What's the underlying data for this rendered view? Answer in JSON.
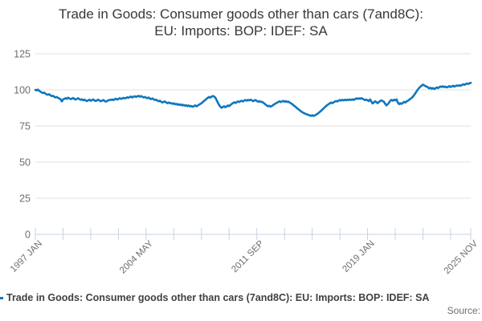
{
  "title": {
    "line1": "Trade in Goods: Consumer goods other than cars (7and8C):",
    "line2": "EU: Imports: BOP: IDEF: SA"
  },
  "legend": {
    "label": "Trade in Goods: Consumer goods other than cars (7and8C): EU: Imports: BOP: IDEF: SA",
    "marker_color": "#1077bd"
  },
  "footer": {
    "source_label": "Source:"
  },
  "chart_data": {
    "type": "line",
    "title": "Trade in Goods: Consumer goods other than cars (7and8C): EU: Imports: BOP: IDEF: SA",
    "xlabel": "",
    "ylabel": "",
    "ylim": [
      0,
      125
    ],
    "y_ticks": [
      0,
      25,
      50,
      75,
      100,
      125
    ],
    "grid": true,
    "legend_position": "bottom-left",
    "x_tick_labels": [
      "1997 JAN",
      "2004 MAY",
      "2011 SEP",
      "2019 JAN",
      "2025 NOV"
    ],
    "x_tick_interval_months": 22,
    "x_labeled_tick_indices": [
      0,
      4,
      8,
      12,
      16
    ],
    "colors": {
      "line": "#1077bd",
      "grid": "#e1e1e1",
      "axis": "#c7d3e2",
      "tick_text": "#6e6e6e"
    },
    "series": [
      {
        "name": "Trade in Goods: Consumer goods other than cars (7and8C): EU: Imports: BOP: IDEF: SA",
        "frequency": "monthly",
        "start": "1997 JAN",
        "end": "2025 NOV",
        "values": [
          100.0,
          99.6,
          100.2,
          99.4,
          98.8,
          98.3,
          97.8,
          98.1,
          97.4,
          96.9,
          96.6,
          97.0,
          96.2,
          95.7,
          95.9,
          95.2,
          94.8,
          95.1,
          94.5,
          94.0,
          93.6,
          92.0,
          93.4,
          93.8,
          94.3,
          93.8,
          94.6,
          94.1,
          93.6,
          93.9,
          94.4,
          93.7,
          93.3,
          93.8,
          94.2,
          93.6,
          93.1,
          93.5,
          92.8,
          93.3,
          92.6,
          92.2,
          92.8,
          93.2,
          92.5,
          92.9,
          93.4,
          92.7,
          92.3,
          92.8,
          93.2,
          92.6,
          92.1,
          92.5,
          93.0,
          92.4,
          91.9,
          92.3,
          92.8,
          93.1,
          93.0,
          93.4,
          92.9,
          93.5,
          93.9,
          93.3,
          93.7,
          94.2,
          93.8,
          94.0,
          94.5,
          94.1,
          94.4,
          94.9,
          94.5,
          95.0,
          95.4,
          94.8,
          95.2,
          95.6,
          95.1,
          95.5,
          95.9,
          95.3,
          95.7,
          95.2,
          94.8,
          95.1,
          94.6,
          94.2,
          94.7,
          94.0,
          93.6,
          94.1,
          93.5,
          93.0,
          93.2,
          92.6,
          92.1,
          92.5,
          91.8,
          91.3,
          91.7,
          92.0,
          91.2,
          90.8,
          91.3,
          90.7,
          90.9,
          90.3,
          90.7,
          90.0,
          90.4,
          89.7,
          90.1,
          89.5,
          89.9,
          89.2,
          89.6,
          89.0,
          89.4,
          88.7,
          89.2,
          88.5,
          88.9,
          88.3,
          88.8,
          89.3,
          88.6,
          89.1,
          89.7,
          90.2,
          90.8,
          91.5,
          92.3,
          93.0,
          93.8,
          94.5,
          95.1,
          94.6,
          95.3,
          95.8,
          95.4,
          94.7,
          93.0,
          91.2,
          89.6,
          88.4,
          87.6,
          88.1,
          88.7,
          88.0,
          88.5,
          89.2,
          88.8,
          89.5,
          90.2,
          90.8,
          91.4,
          90.9,
          91.5,
          92.0,
          91.6,
          92.1,
          92.5,
          92.0,
          92.6,
          93.0,
          92.5,
          93.1,
          92.7,
          93.2,
          92.8,
          92.2,
          92.6,
          93.0,
          92.3,
          91.8,
          92.2,
          91.7,
          91.8,
          91.2,
          90.6,
          89.8,
          89.2,
          88.6,
          89.0,
          88.4,
          88.9,
          89.5,
          90.1,
          90.6,
          91.1,
          91.6,
          92.1,
          91.5,
          92.0,
          92.4,
          91.8,
          92.2,
          91.6,
          91.9,
          91.3,
          90.8,
          90.2,
          89.5,
          88.8,
          88.1,
          87.3,
          86.6,
          85.9,
          85.2,
          84.6,
          84.1,
          83.7,
          83.3,
          83.0,
          82.7,
          82.3,
          82.0,
          82.5,
          81.9,
          82.4,
          82.8,
          83.4,
          84.0,
          84.7,
          85.5,
          86.3,
          87.1,
          88.0,
          88.8,
          89.5,
          90.1,
          90.7,
          91.2,
          90.8,
          91.4,
          91.9,
          92.3,
          92.0,
          92.5,
          93.0,
          92.6,
          93.1,
          92.7,
          93.2,
          92.8,
          93.3,
          92.9,
          93.4,
          93.0,
          93.5,
          93.0,
          93.6,
          94.1,
          93.7,
          94.2,
          93.8,
          94.3,
          93.9,
          93.4,
          92.9,
          93.3,
          92.8,
          92.2,
          93.4,
          92.0,
          90.6,
          91.3,
          92.1,
          91.5,
          90.8,
          91.6,
          92.2,
          92.7,
          92.3,
          91.7,
          90.4,
          89.3,
          90.0,
          91.1,
          92.4,
          93.1,
          92.5,
          93.2,
          92.7,
          93.4,
          91.4,
          90.1,
          90.8,
          90.3,
          91.0,
          91.7,
          91.2,
          92.0,
          92.5,
          93.1,
          93.8,
          94.4,
          95.2,
          96.4,
          97.7,
          99.0,
          100.3,
          101.4,
          102.2,
          103.0,
          103.6,
          103.1,
          102.6,
          102.2,
          101.7,
          101.0,
          101.5,
          100.8,
          101.3,
          100.6,
          101.1,
          101.7,
          101.2,
          101.9,
          102.4,
          102.0,
          102.5,
          101.9,
          102.3,
          101.7,
          102.1,
          102.6,
          102.0,
          102.4,
          102.9,
          102.3,
          102.7,
          103.1,
          102.7,
          103.2,
          102.8,
          103.4,
          103.9,
          103.5,
          104.0,
          104.4,
          104.1,
          104.6,
          104.9
        ]
      }
    ]
  }
}
